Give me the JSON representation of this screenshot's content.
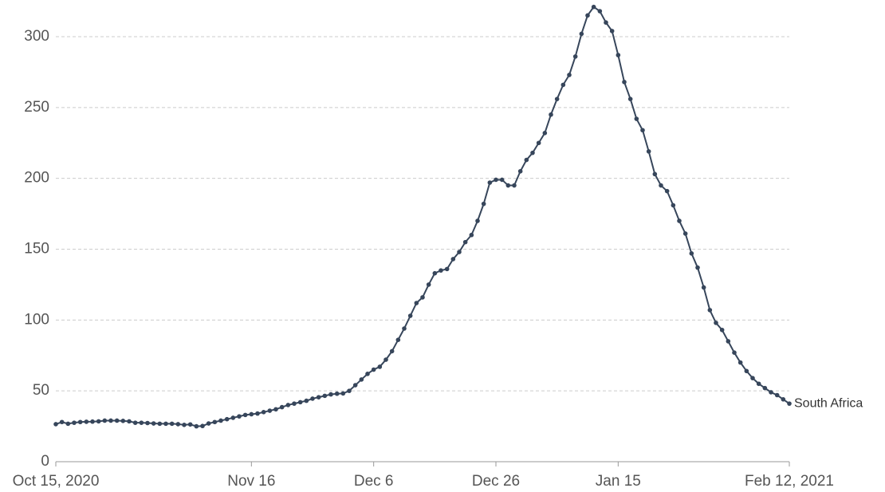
{
  "chart_data": {
    "type": "line",
    "categories": [
      "Oct 15, 2020",
      null,
      null,
      null,
      null,
      null,
      null,
      null,
      null,
      null,
      null,
      null,
      null,
      null,
      null,
      null,
      null,
      null,
      null,
      null,
      null,
      null,
      null,
      null,
      null,
      null,
      null,
      null,
      null,
      null,
      null,
      null,
      "Nov 16",
      null,
      null,
      null,
      null,
      null,
      null,
      null,
      null,
      null,
      null,
      null,
      null,
      null,
      null,
      null,
      null,
      null,
      null,
      null,
      "Dec 6",
      null,
      null,
      null,
      null,
      null,
      null,
      null,
      null,
      null,
      null,
      null,
      null,
      null,
      null,
      null,
      null,
      null,
      null,
      null,
      "Dec 26",
      null,
      null,
      null,
      null,
      null,
      null,
      null,
      null,
      null,
      null,
      null,
      null,
      null,
      null,
      null,
      null,
      null,
      null,
      null,
      "Jan 15",
      null,
      null,
      null,
      null,
      null,
      null,
      null,
      null,
      null,
      null,
      null,
      null,
      null,
      null,
      null,
      null,
      null,
      null,
      null,
      null,
      null,
      null,
      null,
      null,
      null,
      null,
      null,
      "Feb 12, 2021"
    ],
    "series": [
      {
        "name": "South Africa",
        "color": "#37465b",
        "values": [
          26.5,
          28,
          26.8,
          27.5,
          28,
          28.2,
          28.3,
          28.5,
          29,
          29,
          29,
          28.8,
          28.5,
          27.5,
          27.5,
          27.3,
          27,
          26.8,
          26.8,
          26.8,
          26.5,
          26,
          26.3,
          25,
          25.2,
          27,
          28,
          29,
          30,
          31,
          32,
          33,
          33.5,
          34,
          35,
          36,
          37,
          38.5,
          40,
          41,
          42,
          43,
          44.5,
          45.5,
          46.5,
          47.5,
          48,
          48.2,
          50,
          54,
          58,
          62,
          65,
          67,
          72,
          78,
          86,
          94,
          103,
          112,
          116,
          125,
          133,
          135,
          136,
          143,
          148,
          155,
          160,
          170,
          182,
          197,
          199,
          199,
          195,
          195,
          205,
          213,
          218,
          225,
          232,
          245,
          256,
          266,
          273,
          286,
          302,
          315,
          321,
          318,
          310,
          304,
          287,
          268,
          256,
          242,
          234,
          219,
          203,
          195,
          191,
          181,
          170,
          161,
          147,
          137,
          123,
          107,
          98,
          93,
          85,
          77,
          70,
          64,
          59,
          55,
          52,
          49,
          47,
          44,
          41
        ]
      }
    ],
    "ylim": [
      0,
      300
    ],
    "yticks": [
      0,
      50,
      100,
      150,
      200,
      250,
      300
    ],
    "grid": true
  }
}
